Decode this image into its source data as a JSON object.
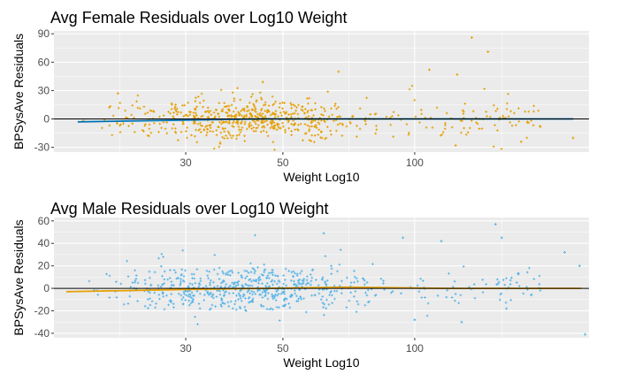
{
  "chart_data": [
    {
      "type": "scatter",
      "title": "Avg Female Residuals over Log10 Weight",
      "xlabel": "Weight Log10",
      "ylabel": "BPSysAve Residuals",
      "x_scale": "log10",
      "xlim": [
        15,
        250
      ],
      "ylim": [
        -35,
        93
      ],
      "x_ticks": [
        30,
        50,
        100
      ],
      "y_ticks": [
        -30,
        0,
        30,
        60,
        90
      ],
      "point_color": "#E69F00",
      "trend_color": "#0072B2",
      "hline_y": 0,
      "highlights": [
        {
          "x": 21,
          "y": 27
        },
        {
          "x": 135,
          "y": 86
        },
        {
          "x": 147,
          "y": 71
        },
        {
          "x": 108,
          "y": 52
        },
        {
          "x": 67,
          "y": 50
        },
        {
          "x": 125,
          "y": 47
        },
        {
          "x": 45,
          "y": 39
        },
        {
          "x": 17.5,
          "y": -2
        },
        {
          "x": 230,
          "y": -20
        },
        {
          "x": 175,
          "y": -24
        },
        {
          "x": 124,
          "y": -28
        }
      ],
      "trend": [
        [
          17,
          -3
        ],
        [
          23,
          -2
        ],
        [
          32,
          -1
        ],
        [
          45,
          0
        ],
        [
          70,
          0
        ],
        [
          120,
          0
        ],
        [
          230,
          0
        ]
      ]
    },
    {
      "type": "scatter",
      "title": "Avg Male Residuals over Log10 Weight",
      "xlabel": "Weight Log10",
      "ylabel": "BPSysAve Residuals",
      "x_scale": "log10",
      "xlim": [
        15,
        250
      ],
      "ylim": [
        -44,
        63
      ],
      "x_ticks": [
        30,
        50,
        100
      ],
      "y_ticks": [
        -40,
        -20,
        0,
        20,
        40,
        60
      ],
      "point_color": "#56B4E9",
      "trend_color": "#E69F00",
      "hline_y": 0,
      "highlights": [
        {
          "x": 153,
          "y": 57
        },
        {
          "x": 158,
          "y": 45
        },
        {
          "x": 62,
          "y": 49
        },
        {
          "x": 94,
          "y": 45
        },
        {
          "x": 115,
          "y": 42
        },
        {
          "x": 220,
          "y": 32
        },
        {
          "x": 238,
          "y": 20
        },
        {
          "x": 245,
          "y": -41
        },
        {
          "x": 162,
          "y": -18
        },
        {
          "x": 100,
          "y": -28
        },
        {
          "x": 128,
          "y": -30
        }
      ],
      "trend": [
        [
          16,
          -3
        ],
        [
          22,
          -2
        ],
        [
          30,
          -1
        ],
        [
          45,
          0
        ],
        [
          70,
          1
        ],
        [
          120,
          0
        ],
        [
          240,
          0
        ]
      ]
    }
  ]
}
